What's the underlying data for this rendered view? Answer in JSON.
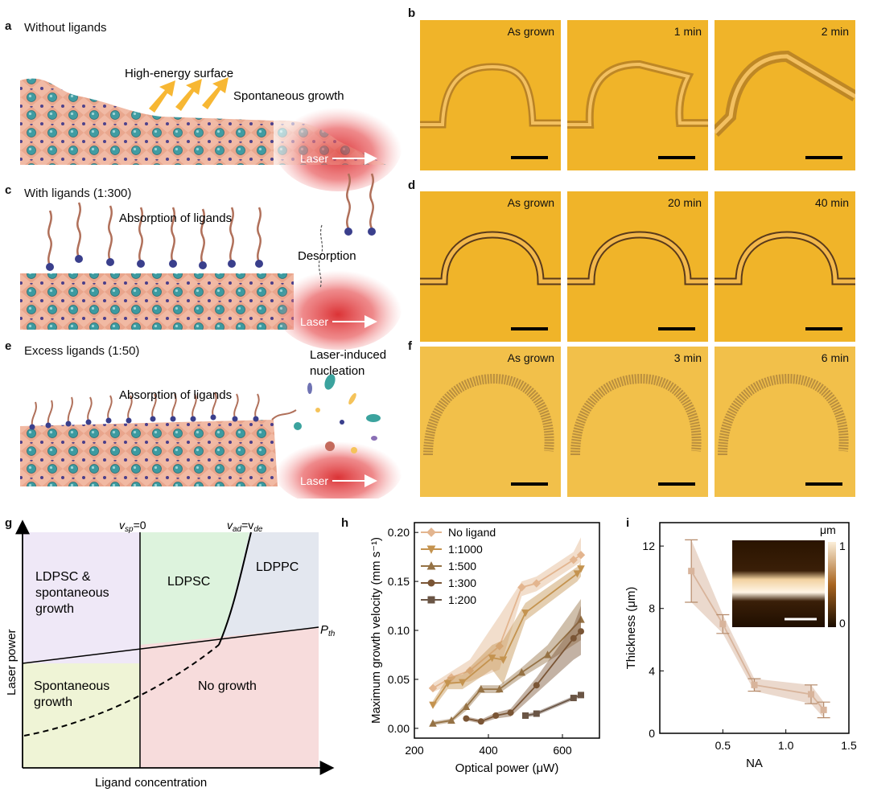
{
  "panels": {
    "a": {
      "letter": "a",
      "title": "Without ligands",
      "ann1": "High-energy surface",
      "ann2": "Spontaneous growth",
      "laser": "Laser"
    },
    "b": {
      "letter": "b",
      "times": [
        "As grown",
        "1 min",
        "2 min"
      ]
    },
    "c": {
      "letter": "c",
      "title": "With ligands (1:300)",
      "ann1": "Absorption of ligands",
      "ann2": "Desorption",
      "laser": "Laser"
    },
    "d": {
      "letter": "d",
      "times": [
        "As grown",
        "20 min",
        "40 min"
      ]
    },
    "e": {
      "letter": "e",
      "title": "Excess ligands (1:50)",
      "ann1": "Absorption of ligands",
      "ann2a": "Laser-induced",
      "ann2b": "nucleation",
      "laser": "Laser"
    },
    "f": {
      "letter": "f",
      "times": [
        "As grown",
        "3 min",
        "6 min"
      ]
    },
    "g": {
      "letter": "g",
      "ylabel": "Laser power",
      "xlabel": "Ligand concentration",
      "vsp": "v",
      "vsp_sub": "sp",
      "vsp_eq": "=0",
      "vad": "v",
      "vad_sub": "ad",
      "vad_eq": "=v",
      "vde_sub": "de",
      "pth": "P",
      "pth_sub": "th",
      "regions": {
        "r1a": "LDPSC &",
        "r1b": "spontaneous",
        "r1c": "growth",
        "r2": "LDPSC",
        "r3": "LDPPC",
        "r4a": "Spontaneous",
        "r4b": "growth",
        "r5": "No growth"
      }
    },
    "h": {
      "letter": "h"
    },
    "i": {
      "letter": "i",
      "inset_unit": "μm",
      "inset_max": "1",
      "inset_min": "0"
    }
  },
  "colors": {
    "micro": "#f0b429",
    "laser_red": "#e0373a",
    "region_purple": "#efe8f7",
    "region_green": "#ddf3dd",
    "region_blue": "#e3e7ef",
    "region_yellow": "#eff4d6",
    "region_pink": "#f7dcdc"
  },
  "chart_data": [
    {
      "type": "line",
      "title": "",
      "xlabel": "Optical power (μW)",
      "ylabel": "Maximum growth velocity (mm s⁻¹)",
      "xlim": [
        200,
        700
      ],
      "ylim": [
        -0.01,
        0.21
      ],
      "xticks": [
        200,
        400,
        600
      ],
      "yticks": [
        0.0,
        0.05,
        0.1,
        0.15,
        0.2
      ],
      "xtick_labels": [
        "200",
        "400",
        "600"
      ],
      "ytick_labels": [
        "0.00",
        "0.05",
        "0.10",
        "0.15",
        "0.20"
      ],
      "series": [
        {
          "name": "No ligand",
          "color": "#e3b58f",
          "marker": "diamond",
          "x": [
            250,
            300,
            350,
            430,
            490,
            530,
            630,
            650
          ],
          "y": [
            0.041,
            0.052,
            0.059,
            0.084,
            0.144,
            0.148,
            0.172,
            0.177
          ],
          "lo": [
            0.037,
            0.045,
            0.048,
            0.06,
            0.135,
            0.14,
            0.165,
            0.17
          ],
          "hi": [
            0.046,
            0.058,
            0.07,
            0.115,
            0.15,
            0.155,
            0.18,
            0.195
          ]
        },
        {
          "name": "1:1000",
          "color": "#c4934f",
          "marker": "triangle-down",
          "x": [
            250,
            290,
            330,
            410,
            440,
            500,
            640,
            650
          ],
          "y": [
            0.024,
            0.046,
            0.047,
            0.072,
            0.07,
            0.118,
            0.158,
            0.163
          ],
          "lo": [
            0.02,
            0.04,
            0.04,
            0.06,
            0.045,
            0.11,
            0.15,
            0.155
          ],
          "hi": [
            0.028,
            0.052,
            0.055,
            0.085,
            0.09,
            0.128,
            0.165,
            0.17
          ]
        },
        {
          "name": "1:500",
          "color": "#957245",
          "marker": "triangle-up",
          "x": [
            250,
            300,
            340,
            380,
            430,
            490,
            560,
            650
          ],
          "y": [
            0.005,
            0.008,
            0.022,
            0.04,
            0.04,
            0.057,
            0.075,
            0.111
          ],
          "lo": [
            0.003,
            0.006,
            0.018,
            0.036,
            0.036,
            0.052,
            0.068,
            0.09
          ],
          "hi": [
            0.007,
            0.01,
            0.026,
            0.044,
            0.044,
            0.062,
            0.085,
            0.132
          ]
        },
        {
          "name": "1:300",
          "color": "#7a5535",
          "marker": "circle",
          "x": [
            340,
            380,
            420,
            460,
            530,
            630,
            650
          ],
          "y": [
            0.01,
            0.007,
            0.013,
            0.016,
            0.044,
            0.092,
            0.099
          ],
          "lo": [
            0.008,
            0.005,
            0.01,
            0.012,
            0.036,
            0.07,
            0.075
          ],
          "hi": [
            0.012,
            0.009,
            0.016,
            0.02,
            0.052,
            0.105,
            0.125
          ]
        },
        {
          "name": "1:200",
          "color": "#6a5545",
          "marker": "square",
          "x": [
            500,
            530,
            630,
            650
          ],
          "y": [
            0.013,
            0.015,
            0.031,
            0.034
          ],
          "lo": [
            0.011,
            0.013,
            0.029,
            0.032
          ],
          "hi": [
            0.015,
            0.017,
            0.033,
            0.036
          ]
        }
      ]
    },
    {
      "type": "line",
      "title": "",
      "xlabel": "NA",
      "ylabel": "Thickness (μm)",
      "xlim": [
        0,
        1.5
      ],
      "ylim": [
        0,
        13.5
      ],
      "xticks": [
        0.5,
        1.0,
        1.5
      ],
      "yticks": [
        0,
        4,
        8,
        12
      ],
      "xtick_labels": [
        "0.5",
        "1.0",
        "1.5"
      ],
      "ytick_labels": [
        "0",
        "4",
        "8",
        "12"
      ],
      "series": [
        {
          "name": "Thickness",
          "color": "#d8b49b",
          "marker": "square",
          "x": [
            0.25,
            0.5,
            0.75,
            1.2,
            1.3
          ],
          "y": [
            10.4,
            7.0,
            3.1,
            2.5,
            1.5
          ],
          "err": [
            2.0,
            0.6,
            0.4,
            0.6,
            0.5
          ]
        }
      ]
    }
  ]
}
